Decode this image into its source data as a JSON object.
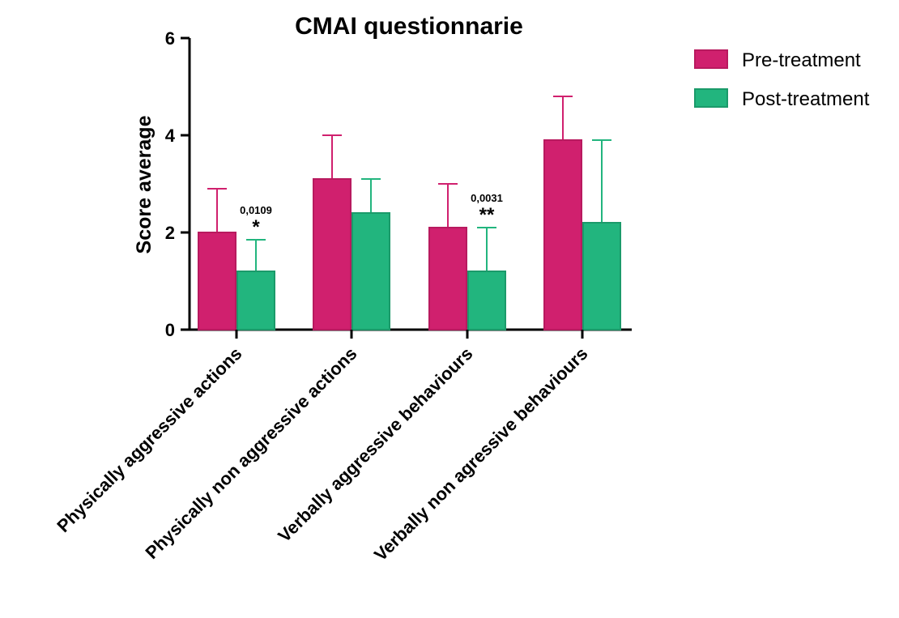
{
  "chart_data": {
    "type": "bar",
    "title": "CMAI questionnarie",
    "xlabel": "",
    "ylabel": "Score average",
    "ylim": [
      0,
      6
    ],
    "yticks": [
      0,
      2,
      4,
      6
    ],
    "categories": [
      "Physically aggressive actions",
      "Physically non aggressive actions",
      "Verbally aggressive behaviours",
      "Verbally non agressive behaviours"
    ],
    "series": [
      {
        "name": "Pre-treatment",
        "color": "#d0206e",
        "values": [
          2.0,
          3.1,
          2.1,
          3.9
        ],
        "error_upper": [
          2.9,
          4.0,
          3.0,
          4.8
        ]
      },
      {
        "name": "Post-treatment",
        "color": "#22b57e",
        "values": [
          1.2,
          2.4,
          1.2,
          2.2
        ],
        "error_upper": [
          1.85,
          3.1,
          2.1,
          3.9
        ]
      }
    ],
    "annotations": [
      {
        "category_index": 0,
        "p_value": "0,0109",
        "stars": "*"
      },
      {
        "category_index": 2,
        "p_value": "0,0031",
        "stars": "**"
      }
    ],
    "legend_position": "top-right",
    "grid": false
  }
}
